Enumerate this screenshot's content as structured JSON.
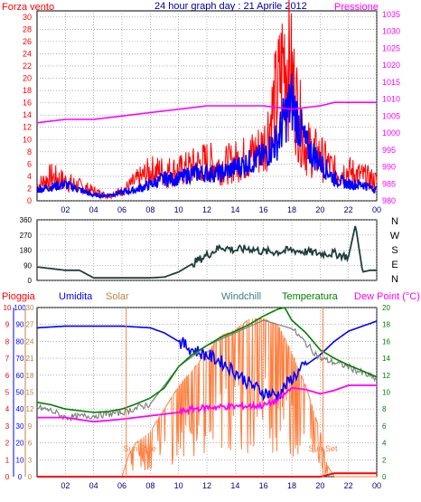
{
  "title": "24 hour graph day : 21 Aprile 2012",
  "colors": {
    "wind": "#ff0000",
    "gust_line": "#0000ff",
    "pressure": "#ff00ff",
    "direction": "#1f3f3a",
    "humidity": "#0000ff",
    "solar": "#ff7f3f",
    "windchill": "#808080",
    "temperature": "#008000",
    "dew_point": "#ff00ff",
    "rain": "#ff0000",
    "grid": "#808080",
    "frame": "#000000",
    "axis_left_top": "#ff0000",
    "axis_right_top": "#ff00ff",
    "axis_humidity": "#0000ff",
    "axis_solar": "#c08040",
    "axis_temp": "#008000",
    "sun_marker": "#ff7f3f"
  },
  "chart_data": [
    {
      "type": "line",
      "name": "wind",
      "left_label": "Forza vento",
      "right_label": "Pressione",
      "x_ticks": [
        "02",
        "04",
        "06",
        "08",
        "10",
        "12",
        "14",
        "16",
        "18",
        "20",
        "22",
        "00"
      ],
      "yleft_ticks": [
        0,
        2,
        4,
        6,
        8,
        10,
        12,
        14,
        16,
        18,
        20,
        22,
        24,
        26,
        28,
        30
      ],
      "yright_ticks": [
        980,
        985,
        990,
        995,
        1000,
        1005,
        1010,
        1015,
        1020,
        1025,
        1030,
        1035
      ],
      "ylim_left": [
        0,
        31
      ],
      "ylim_right": [
        980,
        1036
      ],
      "grid": true,
      "series": {
        "wind_max_hourly": [
          [
            0,
            3
          ],
          [
            1,
            5
          ],
          [
            2,
            4
          ],
          [
            3,
            3
          ],
          [
            4,
            2
          ],
          [
            5,
            1
          ],
          [
            6,
            2
          ],
          [
            7,
            4
          ],
          [
            8,
            6
          ],
          [
            9,
            6
          ],
          [
            10,
            6
          ],
          [
            11,
            7
          ],
          [
            12,
            8
          ],
          [
            13,
            7
          ],
          [
            14,
            8
          ],
          [
            15,
            9
          ],
          [
            16,
            11
          ],
          [
            17,
            22
          ],
          [
            17.5,
            30
          ],
          [
            18,
            25
          ],
          [
            18.5,
            17
          ],
          [
            19,
            11
          ],
          [
            20,
            9
          ],
          [
            21,
            6
          ],
          [
            22,
            6
          ],
          [
            23,
            5
          ],
          [
            24,
            4
          ]
        ],
        "wind_avg_hourly": [
          [
            0,
            2
          ],
          [
            1,
            2.5
          ],
          [
            2,
            3
          ],
          [
            3,
            2
          ],
          [
            4,
            1
          ],
          [
            5,
            1
          ],
          [
            6,
            1.5
          ],
          [
            7,
            2
          ],
          [
            8,
            3
          ],
          [
            9,
            4
          ],
          [
            10,
            4
          ],
          [
            11,
            5
          ],
          [
            12,
            5
          ],
          [
            13,
            5
          ],
          [
            14,
            6
          ],
          [
            15,
            7
          ],
          [
            16,
            8
          ],
          [
            17,
            11
          ],
          [
            17.5,
            15
          ],
          [
            18,
            18
          ],
          [
            18.5,
            14
          ],
          [
            19,
            10
          ],
          [
            20,
            7
          ],
          [
            21,
            4
          ],
          [
            22,
            3
          ],
          [
            23,
            3
          ],
          [
            24,
            2
          ]
        ],
        "pressure_hourly": [
          [
            0,
            1003
          ],
          [
            2,
            1004
          ],
          [
            4,
            1004
          ],
          [
            6,
            1005
          ],
          [
            8,
            1006
          ],
          [
            10,
            1007
          ],
          [
            12,
            1008
          ],
          [
            14,
            1008
          ],
          [
            16,
            1008
          ],
          [
            18,
            1007
          ],
          [
            20,
            1008
          ],
          [
            21,
            1009
          ],
          [
            22,
            1009
          ],
          [
            24,
            1009
          ]
        ]
      }
    },
    {
      "type": "line",
      "name": "wind-direction",
      "right_labels": [
        "N",
        "W",
        "S",
        "E",
        "N"
      ],
      "y_ticks": [
        0,
        90,
        180,
        270,
        360
      ],
      "ylim": [
        0,
        360
      ],
      "grid": true,
      "series": {
        "direction_hourly": [
          [
            0,
            80
          ],
          [
            1,
            70
          ],
          [
            2,
            60
          ],
          [
            3,
            60
          ],
          [
            4,
            15
          ],
          [
            6,
            15
          ],
          [
            8,
            15
          ],
          [
            9,
            20
          ],
          [
            10,
            50
          ],
          [
            11,
            100
          ],
          [
            12,
            150
          ],
          [
            13,
            200
          ],
          [
            14,
            180
          ],
          [
            15,
            190
          ],
          [
            16,
            170
          ],
          [
            17,
            170
          ],
          [
            18,
            180
          ],
          [
            19,
            170
          ],
          [
            20,
            160
          ],
          [
            21,
            160
          ],
          [
            22,
            140
          ],
          [
            22.5,
            330
          ],
          [
            23,
            50
          ],
          [
            23.5,
            60
          ],
          [
            24,
            60
          ]
        ]
      }
    },
    {
      "type": "line",
      "name": "temp-humidity",
      "header_labels": {
        "rain": "Pioggia",
        "humidity": "Umidita",
        "solar": "Solar",
        "windchill": "Windchill",
        "temperature": "Temperatura",
        "dew_point": "Dew Point (°C)"
      },
      "x_ticks": [
        "02",
        "04",
        "06",
        "08",
        "10",
        "12",
        "14",
        "16",
        "18",
        "20",
        "22",
        "00"
      ],
      "rain_ticks": [
        0,
        1,
        2,
        3,
        4,
        5,
        6,
        7,
        8,
        9,
        10
      ],
      "humidity_ticks": [
        0,
        10,
        20,
        30,
        40,
        50,
        60,
        70,
        80,
        90,
        100
      ],
      "solar_ticks": [
        0,
        3,
        6,
        9,
        12,
        15,
        18,
        21,
        24,
        27,
        30
      ],
      "temp_ticks": [
        0,
        2,
        4,
        6,
        8,
        10,
        12,
        14,
        16,
        18,
        20
      ],
      "annotations": [
        "Sun Rise",
        "Sun Set"
      ],
      "sun_rise_hour": 6.3,
      "sun_set_hour": 20.2,
      "series": {
        "humidity_hourly": [
          [
            0,
            88
          ],
          [
            2,
            89
          ],
          [
            4,
            89
          ],
          [
            6,
            89
          ],
          [
            8,
            88
          ],
          [
            9,
            85
          ],
          [
            10,
            80
          ],
          [
            11,
            75
          ],
          [
            12,
            72
          ],
          [
            13,
            68
          ],
          [
            14,
            62
          ],
          [
            15,
            55
          ],
          [
            16,
            50
          ],
          [
            17,
            48
          ],
          [
            18,
            58
          ],
          [
            19,
            66
          ],
          [
            20,
            72
          ],
          [
            21,
            80
          ],
          [
            22,
            86
          ],
          [
            23,
            89
          ],
          [
            24,
            92
          ]
        ],
        "temperature_hourly": [
          [
            0,
            8.8
          ],
          [
            1,
            8.5
          ],
          [
            2,
            8.0
          ],
          [
            3,
            7.8
          ],
          [
            4,
            7.6
          ],
          [
            5,
            7.7
          ],
          [
            6,
            8.0
          ],
          [
            7,
            8.6
          ],
          [
            8,
            9.3
          ],
          [
            9,
            10.5
          ],
          [
            10,
            13
          ],
          [
            11,
            14.5
          ],
          [
            12,
            15.5
          ],
          [
            13,
            16.5
          ],
          [
            14,
            17.2
          ],
          [
            15,
            18
          ],
          [
            16,
            19
          ],
          [
            17,
            19.8
          ],
          [
            17.5,
            20
          ],
          [
            18,
            18.5
          ],
          [
            19,
            17
          ],
          [
            20,
            15
          ],
          [
            21,
            14
          ],
          [
            22,
            13.2
          ],
          [
            23,
            12.5
          ],
          [
            24,
            11.8
          ]
        ],
        "dew_point_hourly": [
          [
            0,
            7.0
          ],
          [
            2,
            7.0
          ],
          [
            4,
            6.5
          ],
          [
            6,
            6.8
          ],
          [
            8,
            7.2
          ],
          [
            10,
            7.6
          ],
          [
            11,
            8.0
          ],
          [
            12,
            8.2
          ],
          [
            14,
            8.3
          ],
          [
            16,
            8.4
          ],
          [
            17,
            9.0
          ],
          [
            18,
            10.5
          ],
          [
            19,
            10.3
          ],
          [
            20,
            9.8
          ],
          [
            21,
            10.2
          ],
          [
            22,
            10.8
          ],
          [
            24,
            10.8
          ]
        ],
        "windchill_hourly": [
          [
            0,
            8.2
          ],
          [
            1,
            7.8
          ],
          [
            2,
            7.0
          ],
          [
            4,
            7.2
          ],
          [
            6,
            7.6
          ],
          [
            8,
            8.6
          ],
          [
            10,
            13
          ],
          [
            12,
            15.5
          ],
          [
            14,
            17
          ],
          [
            16,
            18.5
          ],
          [
            18,
            17.5
          ],
          [
            20,
            14
          ],
          [
            22,
            13
          ],
          [
            24,
            11.5
          ]
        ],
        "solar_hourly": [
          [
            0,
            0
          ],
          [
            6,
            0
          ],
          [
            6.5,
            4
          ],
          [
            7,
            6
          ],
          [
            8,
            8
          ],
          [
            9,
            12
          ],
          [
            10,
            16
          ],
          [
            11,
            19
          ],
          [
            12,
            22
          ],
          [
            13,
            25
          ],
          [
            14,
            26
          ],
          [
            15,
            28
          ],
          [
            16,
            28
          ],
          [
            17,
            27
          ],
          [
            18,
            22
          ],
          [
            19,
            16
          ],
          [
            20,
            8
          ],
          [
            20.5,
            2
          ],
          [
            21,
            0
          ],
          [
            24,
            0
          ]
        ],
        "rain_hourly": [
          [
            0,
            0
          ],
          [
            20,
            0
          ],
          [
            21,
            0.2
          ],
          [
            24,
            0.2
          ]
        ]
      }
    }
  ]
}
